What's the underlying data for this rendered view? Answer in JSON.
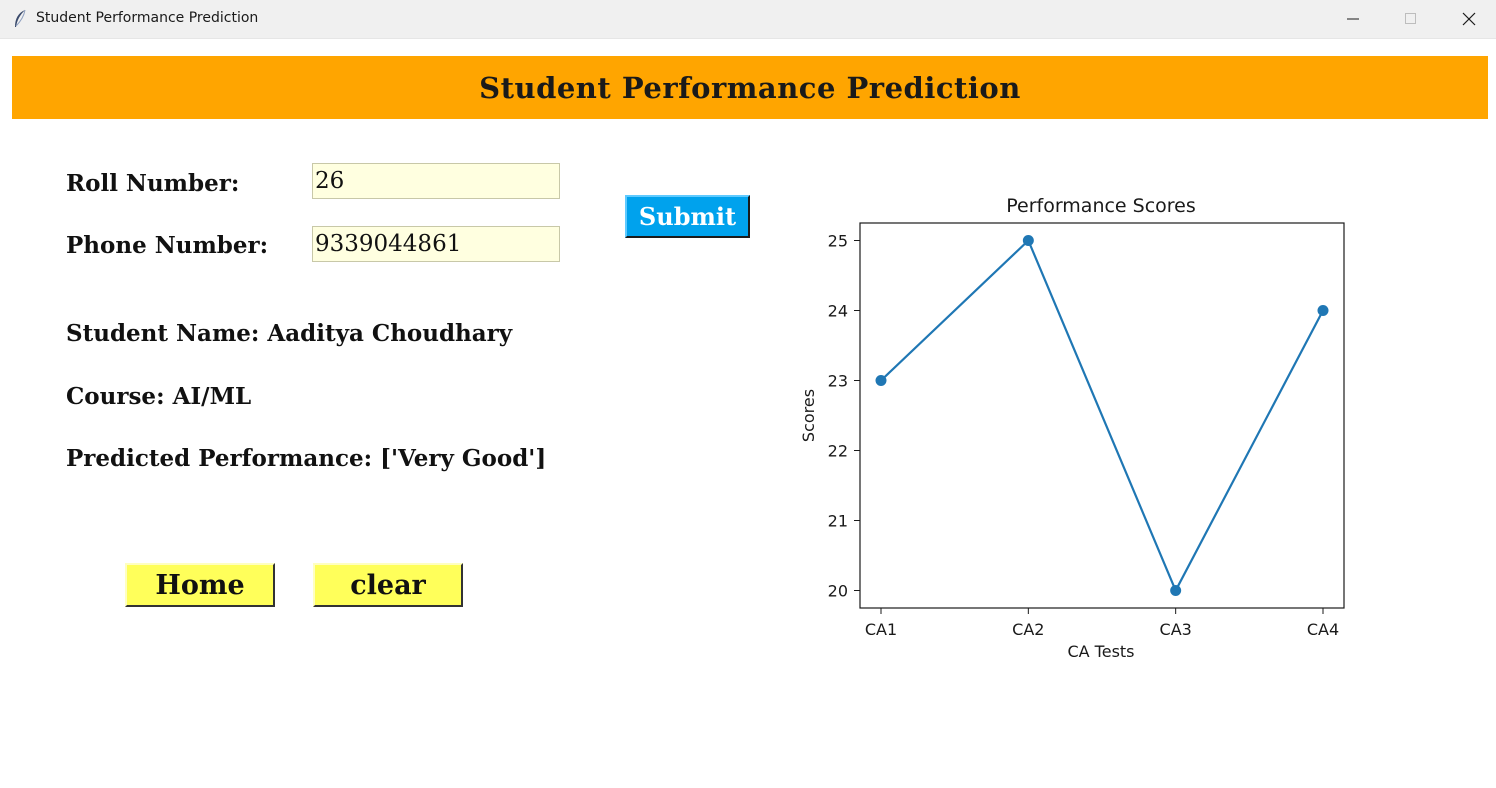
{
  "window": {
    "title": "Student Performance Prediction",
    "icon": "feather-icon"
  },
  "header": {
    "title": "Student Performance Prediction",
    "background": "#ffa500"
  },
  "form": {
    "roll_label": "Roll Number:",
    "roll_value": "26",
    "phone_label": "Phone Number:",
    "phone_value": "9339044861",
    "submit_label": "Submit"
  },
  "results": {
    "student_name": "Student Name: Aaditya Choudhary",
    "course": "Course: AI/ML",
    "predicted": "Predicted Performance: ['Very Good']"
  },
  "buttons": {
    "home_label": "Home",
    "clear_label": "clear"
  },
  "chart_data": {
    "type": "line",
    "title": "Performance Scores",
    "xlabel": "CA Tests",
    "ylabel": "Scores",
    "categories": [
      "CA1",
      "CA2",
      "CA3",
      "CA4"
    ],
    "values": [
      23,
      25,
      20,
      24
    ],
    "yticks": [
      20,
      21,
      22,
      23,
      24,
      25
    ],
    "ylim": [
      19.75,
      25.25
    ],
    "marker": "circle",
    "grid": false,
    "color": "#1f77b4"
  }
}
